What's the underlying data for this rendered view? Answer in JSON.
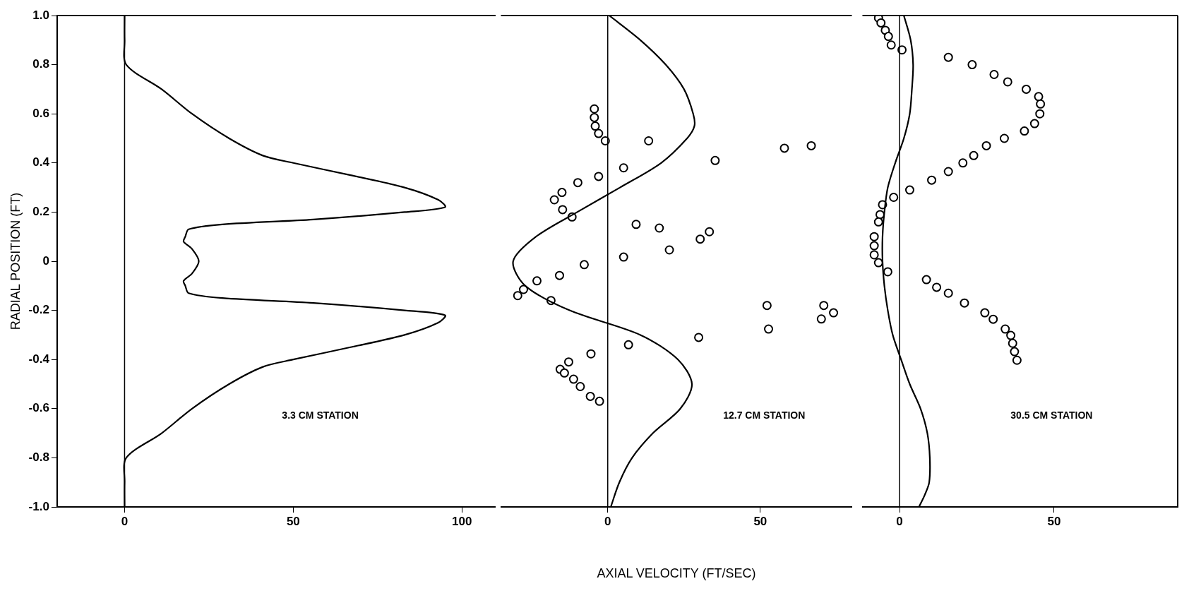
{
  "chart_data": [
    {
      "type": "scatter",
      "ylabel": "RADIAL POSITION (FT)",
      "xlim": [
        -20,
        110
      ],
      "xticks": [
        0,
        50,
        100
      ],
      "ylim": [
        -1,
        1
      ],
      "yticks": [
        {
          "value": -1,
          "label": "-1.0"
        },
        -0.8,
        -0.6,
        -0.4,
        -0.2,
        0,
        0.2,
        0.4,
        0.6,
        0.8,
        {
          "value": 1,
          "label": "1.0"
        }
      ],
      "legend": false,
      "annotations": [
        "3.3 CM STATION"
      ],
      "ref_lines": [
        {
          "axis": "x",
          "value": 0,
          "color": "#000000"
        }
      ],
      "series": [
        {
          "type": "line",
          "color": "#000000",
          "marker": "none",
          "line_style": "solid",
          "x": [
            0,
            0,
            0.5,
            11,
            20,
            31,
            41,
            50,
            67,
            83,
            93,
            95,
            83,
            56,
            29,
            19,
            18,
            17.5,
            20,
            22,
            20,
            17.5,
            18,
            19,
            29,
            56,
            83,
            95,
            93,
            83,
            67,
            50,
            41,
            31,
            20,
            11,
            0.5,
            0,
            0
          ],
          "values": [
            1,
            0.9,
            0.8,
            0.7,
            0.6,
            0.5,
            0.43,
            0.4,
            0.35,
            0.3,
            0.25,
            0.22,
            0.2,
            0.17,
            0.15,
            0.13,
            0.1,
            0.08,
            0.05,
            0,
            -0.05,
            -0.08,
            -0.1,
            -0.13,
            -0.15,
            -0.17,
            -0.2,
            -0.22,
            -0.25,
            -0.3,
            -0.35,
            -0.4,
            -0.43,
            -0.5,
            -0.6,
            -0.7,
            -0.8,
            -0.9,
            -1
          ]
        }
      ]
    },
    {
      "type": "scatter",
      "xlabel": "AXIAL VELOCITY (FT/SEC)",
      "xlim": [
        -35,
        80
      ],
      "xticks": [
        0,
        50
      ],
      "ylim": [
        -1,
        1
      ],
      "tick_labels": "x",
      "legend": false,
      "annotations": [
        "12.7 CM STATION"
      ],
      "ref_lines": [
        {
          "axis": "x",
          "value": 0,
          "color": "#000000"
        }
      ],
      "series": [
        {
          "type": "line",
          "color": "#000000",
          "marker": "none",
          "line_style": "solid",
          "x": [
            0.5,
            10.7,
            19,
            25,
            28,
            28.4,
            26,
            17.5,
            4,
            -10,
            -23.5,
            -31,
            -27,
            -12.5,
            10.7,
            23,
            27.6,
            23.8,
            14.8,
            8,
            3.8,
            1
          ],
          "values": [
            1,
            0.9,
            0.8,
            0.7,
            0.6,
            0.55,
            0.5,
            0.4,
            0.3,
            0.2,
            0.1,
            0,
            -0.1,
            -0.2,
            -0.3,
            -0.4,
            -0.5,
            -0.6,
            -0.7,
            -0.8,
            -0.9,
            -1
          ]
        },
        {
          "type": "scatter",
          "color": "#000000",
          "marker": "circle",
          "x": [
            -4.4,
            -4.4,
            -4.1,
            -3,
            -0.8,
            13.4,
            57.9,
            66.7,
            35.2,
            5.2,
            -3,
            -9.8,
            -15,
            -17.5,
            -14.8,
            -11.7,
            9.3,
            16.9,
            33.3,
            30.3,
            20.2,
            5.2,
            -7.7,
            -15.8,
            -23.2,
            -27.6,
            -29.5,
            -18.6,
            52.2,
            70.8,
            74,
            70,
            52.7,
            29.8,
            6.8,
            -5.5,
            -12.8,
            -15.6,
            -14.2,
            -11.2,
            -9,
            -5.7,
            -2.7
          ],
          "values": [
            0.62,
            0.585,
            0.55,
            0.52,
            0.49,
            0.49,
            0.46,
            0.47,
            0.41,
            0.38,
            0.345,
            0.32,
            0.28,
            0.25,
            0.21,
            0.18,
            0.15,
            0.135,
            0.12,
            0.09,
            0.046,
            0.017,
            -0.014,
            -0.058,
            -0.08,
            -0.115,
            -0.14,
            -0.16,
            -0.18,
            -0.18,
            -0.21,
            -0.235,
            -0.276,
            -0.31,
            -0.34,
            -0.377,
            -0.41,
            -0.44,
            -0.455,
            -0.48,
            -0.51,
            -0.55,
            -0.57
          ]
        }
      ]
    },
    {
      "type": "scatter",
      "xlim": [
        -12,
        90
      ],
      "xticks": [
        0,
        50
      ],
      "ylim": [
        -1,
        1
      ],
      "tick_labels": "x",
      "legend": false,
      "annotations": [
        "30.5 CM STATION"
      ],
      "ref_lines": [
        {
          "axis": "x",
          "value": 0,
          "color": "#000000"
        }
      ],
      "series": [
        {
          "type": "line",
          "color": "#000000",
          "marker": "none",
          "line_style": "solid",
          "x": [
            1.4,
            3.6,
            4.4,
            4,
            3.3,
            1.4,
            -1.4,
            -3.8,
            -4.9,
            -5.5,
            -5.5,
            -4.9,
            -3.8,
            -2.2,
            0.5,
            3.3,
            6.8,
            9,
            9.8,
            9.6,
            8.2,
            6.3
          ],
          "values": [
            1,
            0.9,
            0.8,
            0.7,
            0.6,
            0.5,
            0.4,
            0.3,
            0.2,
            0.1,
            0,
            -0.1,
            -0.2,
            -0.3,
            -0.4,
            -0.5,
            -0.6,
            -0.7,
            -0.8,
            -0.9,
            -0.95,
            -1
          ]
        },
        {
          "type": "scatter",
          "color": "#000000",
          "marker": "circle",
          "x": [
            -6.8,
            -6,
            -4.6,
            -3.6,
            -2.7,
            0.8,
            15.8,
            23.5,
            30.6,
            35,
            41,
            45,
            45.6,
            45.4,
            43.7,
            40.4,
            33.9,
            28.1,
            24,
            20.5,
            15.8,
            10.4,
            3.3,
            -1.9,
            -5.5,
            -6.3,
            -6.8,
            -8.2,
            -8.2,
            -8.2,
            -6.8,
            -3.8,
            8.7,
            12,
            15.8,
            21,
            27.6,
            30.3,
            34.2,
            36,
            36.6,
            37.2,
            38
          ],
          "values": [
            0.99,
            0.97,
            0.94,
            0.915,
            0.88,
            0.86,
            0.83,
            0.8,
            0.76,
            0.73,
            0.7,
            0.67,
            0.64,
            0.6,
            0.56,
            0.53,
            0.5,
            0.47,
            0.43,
            0.4,
            0.365,
            0.33,
            0.29,
            0.26,
            0.23,
            0.19,
            0.16,
            0.1,
            0.063,
            0.026,
            -0.006,
            -0.043,
            -0.075,
            -0.106,
            -0.13,
            -0.17,
            -0.21,
            -0.236,
            -0.276,
            -0.302,
            -0.334,
            -0.368,
            -0.403
          ]
        }
      ]
    }
  ]
}
